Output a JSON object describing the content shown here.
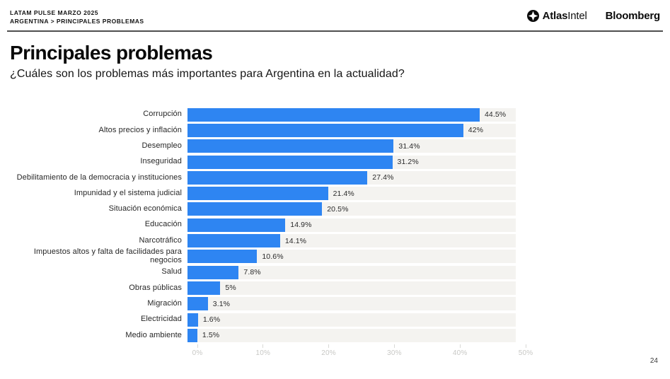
{
  "header": {
    "eyebrow_line1": "LATAM PULSE MARZO 2025",
    "eyebrow_line2": "ARGENTINA > PRINCIPALES PROBLEMAS",
    "logos": {
      "atlasintel_part1": "Atlas",
      "atlasintel_part2": "Intel",
      "bloomberg": "Bloomberg"
    }
  },
  "title": "Principales problemas",
  "subtitle": "¿Cuáles son los problemas más importantes para Argentina en la actualidad?",
  "page_number": "24",
  "colors": {
    "bar": "#2e85f2",
    "bar_track": "#f4f3f0",
    "divider": "#4f4f4f",
    "axis_label": "#c8c8c5",
    "title_text": "#0a0a0a"
  },
  "chart_data": {
    "type": "bar",
    "orientation": "horizontal",
    "title": "Principales problemas",
    "subtitle": "¿Cuáles son los problemas más importantes para Argentina en la actualidad?",
    "xlabel": "",
    "ylabel": "",
    "xlim": [
      0,
      50
    ],
    "grid": false,
    "legend": false,
    "categories": [
      "Corrupción",
      "Altos precios y inflación",
      "Desempleo",
      "Inseguridad",
      "Debilitamiento de la democracia y instituciones",
      "Impunidad y el sistema judicial",
      "Situación económica",
      "Educación",
      "Narcotráfico",
      "Impuestos altos y falta de facilidades para negocios",
      "Salud",
      "Obras públicas",
      "Migración",
      "Electricidad",
      "Medio ambiente"
    ],
    "values": [
      44.5,
      42,
      31.4,
      31.2,
      27.4,
      21.4,
      20.5,
      14.9,
      14.1,
      10.6,
      7.8,
      5,
      3.1,
      1.6,
      1.5
    ],
    "value_labels": [
      "44.5%",
      "42%",
      "31.4%",
      "31.2%",
      "27.4%",
      "21.4%",
      "20.5%",
      "14.9%",
      "14.1%",
      "10.6%",
      "7.8%",
      "5%",
      "3.1%",
      "1.6%",
      "1.5%"
    ],
    "x_ticks": [
      "0%",
      "10%",
      "20%",
      "30%",
      "40%",
      "50%"
    ]
  }
}
